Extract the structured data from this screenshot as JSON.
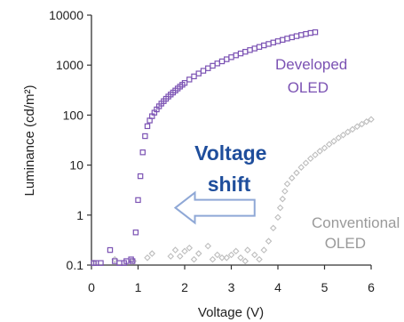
{
  "chart_data": {
    "type": "scatter",
    "xlabel": "Voltage (V)",
    "ylabel": "Luminance (cd/m²)",
    "xlim": [
      0,
      6
    ],
    "ylim": [
      0.1,
      10000
    ],
    "yscale": "log",
    "x_ticks": [
      0,
      1,
      2,
      3,
      4,
      5,
      6
    ],
    "y_ticks": [
      0.1,
      1,
      10,
      100,
      1000,
      10000
    ],
    "x_tick_labels": [
      "0",
      "1",
      "2",
      "3",
      "4",
      "5",
      "6"
    ],
    "y_tick_labels": [
      "0.1",
      "1",
      "10",
      "100",
      "1000",
      "10000"
    ],
    "grid": false,
    "series": [
      {
        "name": "Developed OLED",
        "label_lines": [
          "Developed",
          "OLED"
        ],
        "color": "#7b52b3",
        "marker": "square",
        "points": [
          [
            0.05,
            0.11
          ],
          [
            0.1,
            0.11
          ],
          [
            0.2,
            0.11
          ],
          [
            0.4,
            0.2
          ],
          [
            0.5,
            0.12
          ],
          [
            0.6,
            0.11
          ],
          [
            0.7,
            0.11
          ],
          [
            0.75,
            0.12
          ],
          [
            0.85,
            0.13
          ],
          [
            0.88,
            0.12
          ],
          [
            0.95,
            0.45
          ],
          [
            1.0,
            2
          ],
          [
            1.05,
            6
          ],
          [
            1.1,
            18
          ],
          [
            1.15,
            38
          ],
          [
            1.2,
            60
          ],
          [
            1.25,
            78
          ],
          [
            1.3,
            95
          ],
          [
            1.35,
            112
          ],
          [
            1.4,
            130
          ],
          [
            1.45,
            150
          ],
          [
            1.5,
            170
          ],
          [
            1.55,
            190
          ],
          [
            1.6,
            212
          ],
          [
            1.65,
            235
          ],
          [
            1.7,
            258
          ],
          [
            1.75,
            283
          ],
          [
            1.8,
            310
          ],
          [
            1.85,
            340
          ],
          [
            1.9,
            372
          ],
          [
            1.95,
            405
          ],
          [
            2.0,
            440
          ],
          [
            2.1,
            515
          ],
          [
            2.2,
            595
          ],
          [
            2.3,
            680
          ],
          [
            2.4,
            770
          ],
          [
            2.5,
            865
          ],
          [
            2.6,
            970
          ],
          [
            2.7,
            1080
          ],
          [
            2.8,
            1190
          ],
          [
            2.9,
            1310
          ],
          [
            3.0,
            1440
          ],
          [
            3.1,
            1570
          ],
          [
            3.2,
            1710
          ],
          [
            3.3,
            1850
          ],
          [
            3.4,
            2000
          ],
          [
            3.5,
            2150
          ],
          [
            3.6,
            2310
          ],
          [
            3.7,
            2480
          ],
          [
            3.8,
            2650
          ],
          [
            3.9,
            2830
          ],
          [
            4.0,
            3010
          ],
          [
            4.1,
            3200
          ],
          [
            4.2,
            3400
          ],
          [
            4.3,
            3600
          ],
          [
            4.4,
            3800
          ],
          [
            4.5,
            4000
          ],
          [
            4.6,
            4200
          ],
          [
            4.7,
            4400
          ],
          [
            4.8,
            4550
          ]
        ]
      },
      {
        "name": "Conventional OLED",
        "label_lines": [
          "Conventional",
          "OLED"
        ],
        "color": "#bdbdbd",
        "marker": "diamond",
        "points": [
          [
            0.05,
            0.11
          ],
          [
            0.5,
            0.13
          ],
          [
            0.9,
            0.12
          ],
          [
            1.2,
            0.14
          ],
          [
            1.3,
            0.17
          ],
          [
            1.7,
            0.15
          ],
          [
            1.8,
            0.2
          ],
          [
            1.9,
            0.15
          ],
          [
            2.0,
            0.19
          ],
          [
            2.1,
            0.22
          ],
          [
            2.2,
            0.13
          ],
          [
            2.3,
            0.17
          ],
          [
            2.5,
            0.24
          ],
          [
            2.6,
            0.13
          ],
          [
            2.7,
            0.16
          ],
          [
            2.8,
            0.14
          ],
          [
            2.9,
            0.14
          ],
          [
            3.0,
            0.16
          ],
          [
            3.1,
            0.19
          ],
          [
            3.2,
            0.14
          ],
          [
            3.3,
            0.12
          ],
          [
            3.35,
            0.2
          ],
          [
            3.5,
            0.16
          ],
          [
            3.6,
            0.13
          ],
          [
            3.7,
            0.2
          ],
          [
            3.8,
            0.3
          ],
          [
            3.9,
            0.55
          ],
          [
            4.0,
            0.9
          ],
          [
            4.05,
            1.4
          ],
          [
            4.1,
            2.1
          ],
          [
            4.15,
            3.0
          ],
          [
            4.2,
            4.2
          ],
          [
            4.3,
            5.5
          ],
          [
            4.4,
            7
          ],
          [
            4.5,
            9
          ],
          [
            4.6,
            11
          ],
          [
            4.7,
            13.5
          ],
          [
            4.8,
            16
          ],
          [
            4.9,
            19
          ],
          [
            5.0,
            22
          ],
          [
            5.1,
            26
          ],
          [
            5.2,
            30
          ],
          [
            5.3,
            35
          ],
          [
            5.4,
            40
          ],
          [
            5.5,
            46
          ],
          [
            5.6,
            52
          ],
          [
            5.7,
            59
          ],
          [
            5.8,
            66
          ],
          [
            5.9,
            74
          ],
          [
            6.0,
            82
          ]
        ]
      }
    ],
    "annotations": [
      {
        "text_lines": [
          "Voltage",
          "shift"
        ],
        "style": "bold",
        "color": "#1f4e9c"
      }
    ],
    "arrow": {
      "direction": "left",
      "from_x": 3.5,
      "to_x": 1.8,
      "y": 1.4,
      "fill": "#ffffff",
      "stroke": "#8fa8d6"
    }
  }
}
